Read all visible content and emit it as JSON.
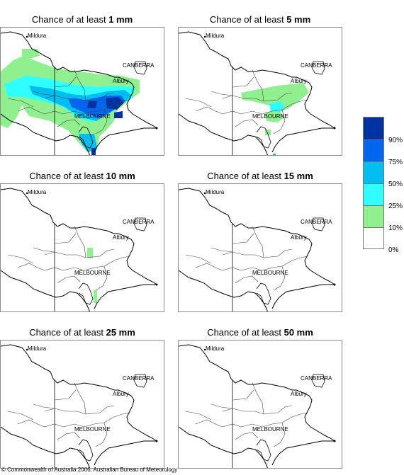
{
  "panels": [
    {
      "prefix": "Chance of at least ",
      "amount": "1 mm",
      "level": 1
    },
    {
      "prefix": "Chance of at least ",
      "amount": "5 mm",
      "level": 2
    },
    {
      "prefix": "Chance of at least ",
      "amount": "10 mm",
      "level": 3
    },
    {
      "prefix": "Chance of at least ",
      "amount": "15 mm",
      "level": 0
    },
    {
      "prefix": "Chance of at least ",
      "amount": "25 mm",
      "level": 0
    },
    {
      "prefix": "Chance of at least ",
      "amount": "50 mm",
      "level": 0
    }
  ],
  "places": {
    "mildura": "Mildura",
    "canberra": "CANBERRA",
    "albury": "Albury",
    "melbourne": "MELBOURNE"
  },
  "legend": {
    "labels": [
      "90%",
      "75%",
      "50%",
      "25%",
      "10%",
      "0%"
    ],
    "colors": [
      "#0033a0",
      "#0066f0",
      "#00bff0",
      "#30ffff",
      "#90f090",
      "#ffffff"
    ]
  },
  "credit": "© Commonwealth of Australia 2006, Australian Bureau of Meteorology"
}
